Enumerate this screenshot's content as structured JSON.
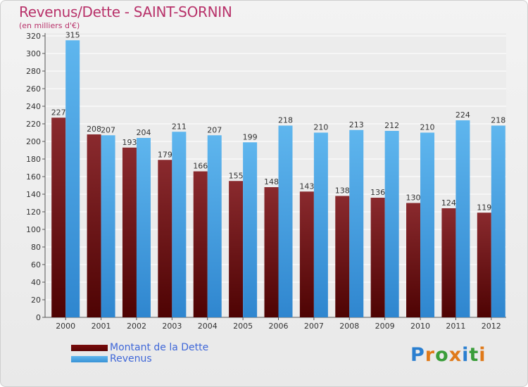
{
  "header": {
    "title": "Revenus/Dette - SAINT-SORNIN",
    "subtitle": "(en milliers d'€)"
  },
  "legend": {
    "dette_label": "Montant de la Dette",
    "revenus_label": "Revenus"
  },
  "brand": {
    "logo_text": "Proxiti"
  },
  "colors": {
    "dette_top": "#8a2a2e",
    "dette_bottom": "#4e0303",
    "revenus_top": "#5fb6ee",
    "revenus_bottom": "#2f86cf",
    "title": "#b8326a",
    "legend_text": "#3f67d8"
  },
  "chart_data": {
    "type": "bar",
    "title": "Revenus/Dette - SAINT-SORNIN",
    "subtitle": "(en milliers d'€)",
    "xlabel": "",
    "ylabel": "",
    "ylim": [
      0,
      320
    ],
    "ytick_step": 20,
    "grid": true,
    "legend_position": "bottom-left",
    "categories": [
      "2000",
      "2001",
      "2002",
      "2003",
      "2004",
      "2005",
      "2006",
      "2007",
      "2008",
      "2009",
      "2010",
      "2011",
      "2012"
    ],
    "series": [
      {
        "name": "Montant de la Dette",
        "values": [
          227,
          208,
          193,
          179,
          166,
          155,
          148,
          143,
          138,
          136,
          130,
          124,
          119
        ]
      },
      {
        "name": "Revenus",
        "values": [
          315,
          207,
          204,
          211,
          207,
          199,
          218,
          210,
          213,
          212,
          210,
          224,
          218
        ]
      }
    ]
  }
}
